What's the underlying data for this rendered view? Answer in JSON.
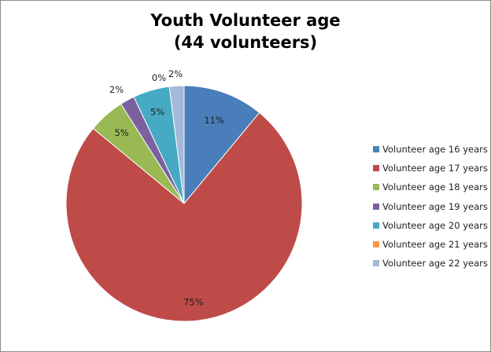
{
  "chart_data": {
    "type": "pie",
    "title_lines": [
      "Youth Volunteer age",
      "(44 volunteers)"
    ],
    "labels": [
      "Volunteer age 16 years",
      "Volunteer age 17 years",
      "Volunteer age 18 years",
      "Volunteer age 19 years",
      "Volunteer age 20 years",
      "Volunteer age 21 years",
      "Volunteer age 22 years"
    ],
    "values": [
      11,
      75,
      5,
      2,
      5,
      0,
      2
    ],
    "data_labels": [
      "11%",
      "75%",
      "5%",
      "2%",
      "5%",
      "0%",
      "2%"
    ],
    "colors": [
      "#4a7ebb",
      "#be4b48",
      "#98b954",
      "#7d60a0",
      "#46aac5",
      "#f79646",
      "#a5b9d8"
    ],
    "legend_position": "right"
  }
}
